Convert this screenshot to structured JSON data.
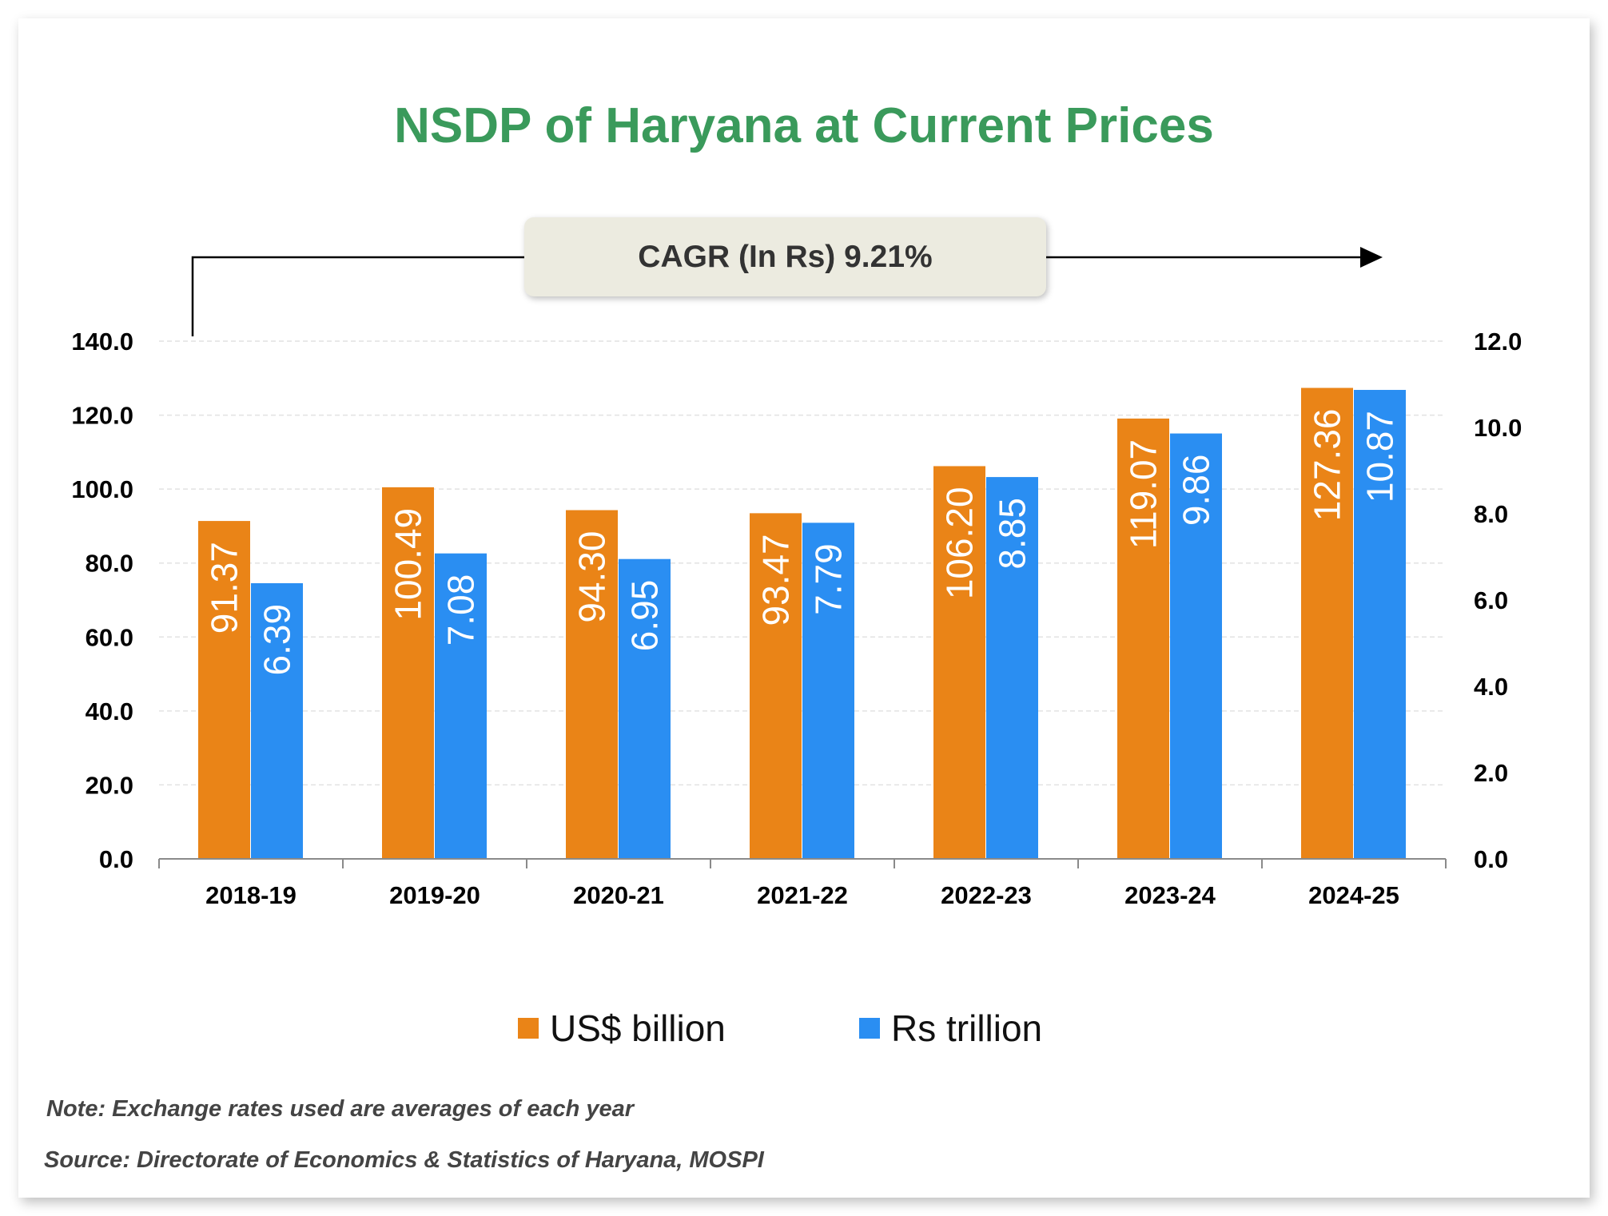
{
  "chart_data": {
    "type": "bar",
    "title": "NSDP of Haryana at Current Prices",
    "annotation": "CAGR (In Rs) 9.21%",
    "categories": [
      "2018-19",
      "2019-20",
      "2020-21",
      "2021-22",
      "2022-23",
      "2023-24",
      "2024-25"
    ],
    "series": [
      {
        "name": "US$ billion",
        "axis": "left",
        "color": "#ea8417",
        "values": [
          91.37,
          100.49,
          94.3,
          93.47,
          106.2,
          119.07,
          127.36
        ],
        "labels": [
          "91.37",
          "100.49",
          "94.30",
          "93.47",
          "106.20",
          "119.07",
          "127.36"
        ]
      },
      {
        "name": "Rs trillion",
        "axis": "right",
        "color": "#2a8ef2",
        "values": [
          6.39,
          7.08,
          6.95,
          7.79,
          8.85,
          9.86,
          10.87
        ],
        "labels": [
          "6.39",
          "7.08",
          "6.95",
          "7.79",
          "8.85",
          "9.86",
          "10.87"
        ]
      }
    ],
    "left_axis": {
      "ylim": [
        0,
        140
      ],
      "ticks": [
        "0.0",
        "20.0",
        "40.0",
        "60.0",
        "80.0",
        "100.0",
        "120.0",
        "140.0"
      ]
    },
    "right_axis": {
      "ylim": [
        0,
        12
      ],
      "ticks": [
        "0.0",
        "2.0",
        "4.0",
        "6.0",
        "8.0",
        "10.0",
        "12.0"
      ]
    },
    "grid": true,
    "legend": "bottom"
  },
  "footer": {
    "note": "Note: Exchange rates used are averages of each year",
    "source": "Source: Directorate of Economics & Statistics of Haryana, MOSPI"
  }
}
